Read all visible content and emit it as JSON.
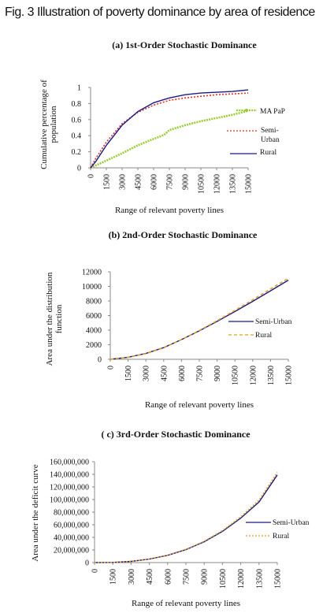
{
  "figure_title": "Fig. 3 Illustration of poverty dominance by area of residence",
  "chart_data": [
    {
      "type": "line",
      "title": "(a) 1st-Order Stochastic Dominance",
      "xlabel": "Range of relevant poverty lines",
      "ylabel": "Cumulative percentage of population",
      "xlim": [
        0,
        15000
      ],
      "ylim": [
        0,
        1
      ],
      "x_ticks": [
        "0",
        "1500",
        "3000",
        "4500",
        "6000",
        "7500",
        "9000",
        "10500",
        "12000",
        "13500",
        "15000"
      ],
      "y_ticks": [
        "0",
        "0.2",
        "0.4",
        "0.6",
        "0.8",
        "1"
      ],
      "legend_position": "right",
      "x": [
        0,
        500,
        1500,
        3000,
        4500,
        6000,
        7000,
        7500,
        9000,
        10500,
        12000,
        13500,
        15000
      ],
      "series": [
        {
          "name": "MA PaP",
          "color": "#9acd32",
          "style": "dots",
          "values": [
            0,
            0.03,
            0.09,
            0.18,
            0.28,
            0.36,
            0.41,
            0.47,
            0.53,
            0.58,
            0.62,
            0.66,
            0.71
          ]
        },
        {
          "name": "Semi-Urban",
          "color": "#e03020",
          "style": "dotted",
          "values": [
            0,
            0.12,
            0.32,
            0.55,
            0.69,
            0.78,
            0.82,
            0.84,
            0.87,
            0.89,
            0.91,
            0.92,
            0.93
          ]
        },
        {
          "name": "Rural",
          "color": "#1a1a8c",
          "style": "solid",
          "values": [
            0,
            0.08,
            0.28,
            0.53,
            0.7,
            0.81,
            0.85,
            0.87,
            0.91,
            0.93,
            0.94,
            0.95,
            0.97
          ]
        }
      ]
    },
    {
      "type": "line",
      "title": "(b) 2nd-Order Stochastic Dominance",
      "xlabel": "Range of relevant poverty lines",
      "ylabel": "Area under the distribution function",
      "xlim": [
        0,
        15000
      ],
      "ylim": [
        0,
        12000
      ],
      "x_ticks": [
        "0",
        "1500",
        "3000",
        "4500",
        "6000",
        "7500",
        "9000",
        "10500",
        "12000",
        "13500",
        "15000"
      ],
      "y_ticks": [
        "0",
        "2000",
        "4000",
        "6000",
        "8000",
        "10000",
        "12000"
      ],
      "legend_position": "right",
      "x": [
        0,
        1500,
        3000,
        4500,
        6000,
        7500,
        9000,
        10500,
        12000,
        13500,
        15000
      ],
      "series": [
        {
          "name": "Semi-Urban",
          "color": "#1a1a8c",
          "style": "solid",
          "values": [
            0,
            280,
            800,
            1600,
            2700,
            3900,
            5200,
            6550,
            7950,
            9400,
            10850
          ]
        },
        {
          "name": "Rural",
          "color": "#e0a020",
          "style": "dashed",
          "values": [
            0,
            260,
            780,
            1580,
            2700,
            3950,
            5300,
            6700,
            8150,
            9650,
            11100
          ]
        }
      ]
    },
    {
      "type": "line",
      "title": "( c) 3rd-Order Stochastic Dominance",
      "xlabel": "Range of relevant poverty lines",
      "ylabel": "Area under the deficit curve",
      "xlim": [
        0,
        15000
      ],
      "ylim": [
        0,
        160000000
      ],
      "x_ticks": [
        "0",
        "1500",
        "3000",
        "4500",
        "6000",
        "7500",
        "9000",
        "10500",
        "12000",
        "13500",
        "15000"
      ],
      "y_ticks": [
        "0",
        "20,000,000",
        "40,000,000",
        "60,000,000",
        "80,000,000",
        "100,000,000",
        "120,000,000",
        "140,000,000",
        "160,000,000"
      ],
      "legend_position": "right",
      "x": [
        0,
        1500,
        3000,
        4500,
        6000,
        7500,
        9000,
        10500,
        12000,
        13500,
        15000
      ],
      "series": [
        {
          "name": "Semi-Urban",
          "color": "#1a1a8c",
          "style": "solid",
          "values": [
            0,
            300000,
            1900000,
            5500000,
            11500000,
            20500000,
            33000000,
            49500000,
            70500000,
            96000000,
            139000000
          ]
        },
        {
          "name": "Rural",
          "color": "#e0a020",
          "style": "dotted",
          "values": [
            0,
            300000,
            1900000,
            5600000,
            11700000,
            21000000,
            33800000,
            50800000,
            72500000,
            99000000,
            143000000
          ]
        }
      ]
    }
  ]
}
